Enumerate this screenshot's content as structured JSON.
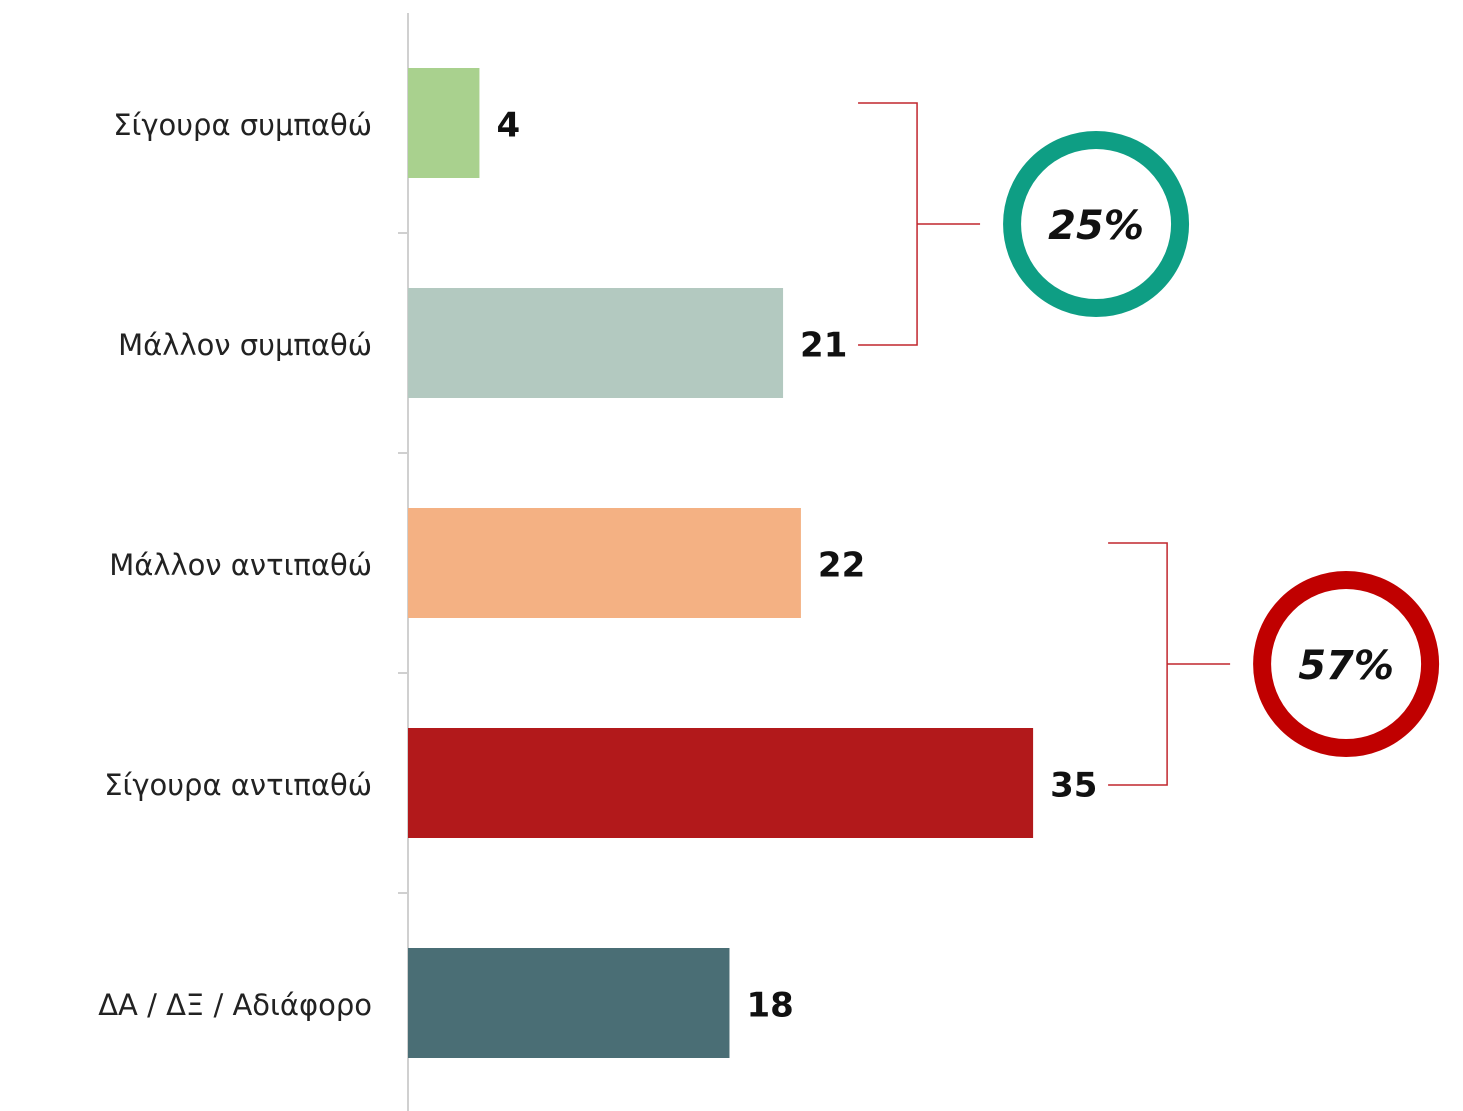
{
  "chart_data": {
    "type": "hbar",
    "categories": [
      "Σίγουρα συμπαθώ",
      "Μάλλον συμπαθώ",
      "Μάλλον αντιπαθώ",
      "Σίγουρα αντιπαθώ",
      "ΔΑ / ΔΞ / Αδιάφορο"
    ],
    "values": [
      4,
      21,
      22,
      35,
      18
    ],
    "colors": [
      "#a9d18e",
      "#b3c9c0",
      "#f4b183",
      "#b2191b",
      "#4a6e75"
    ],
    "groups": [
      {
        "value": 25,
        "label": "25%",
        "color": "#0e9e84",
        "members": [
          "Σίγουρα συμπαθώ",
          "Μάλλον συμπαθώ"
        ]
      },
      {
        "value": 57,
        "label": "57%",
        "color": "#c00000",
        "members": [
          "Μάλλον αντιπαθώ",
          "Σίγουρα αντιπαθώ"
        ]
      }
    ]
  }
}
